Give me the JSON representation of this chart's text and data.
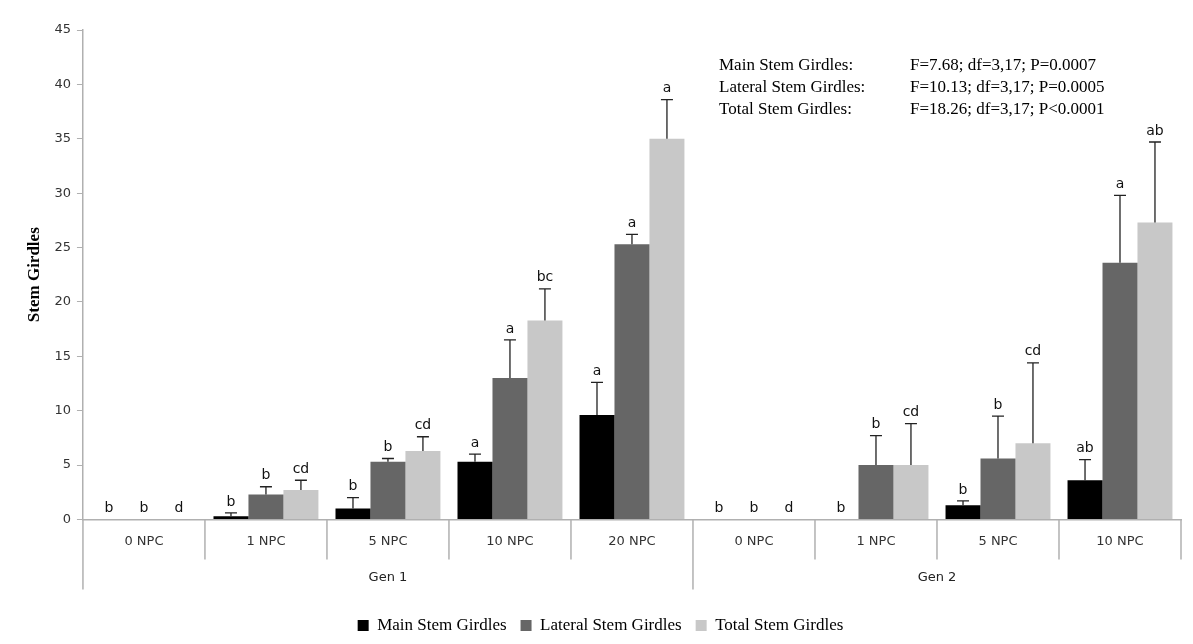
{
  "chart_data": {
    "type": "bar",
    "ylabel": "Stem Girdles",
    "categories": [
      "0 NPC",
      "1 NPC",
      "5 NPC",
      "10 NPC",
      "20 NPC",
      "0 NPC",
      "1 NPC",
      "5 NPC",
      "10 NPC"
    ],
    "series": [
      {
        "name": "Main Stem Girdles",
        "color": "#000000",
        "values": [
          0,
          0.3,
          1.0,
          5.3,
          9.6,
          0,
          0,
          1.3,
          3.6
        ],
        "errors": [
          null,
          [
            0.3,
            0.6
          ],
          [
            1.0,
            2.0
          ],
          [
            5.3,
            6.0
          ],
          [
            9.6,
            12.6
          ],
          null,
          null,
          [
            1.3,
            1.7
          ],
          [
            3.6,
            5.5
          ]
        ]
      },
      {
        "name": "Lateral Stem Girdles",
        "color": "#666666",
        "values": [
          0,
          2.3,
          5.3,
          13.0,
          25.3,
          0,
          5.0,
          5.6,
          23.6
        ],
        "errors": [
          null,
          [
            2.3,
            3.0
          ],
          [
            5.3,
            5.6
          ],
          [
            13.0,
            16.5
          ],
          [
            25.3,
            26.2
          ],
          null,
          [
            5.0,
            7.7
          ],
          [
            5.6,
            9.5
          ],
          [
            23.6,
            29.8
          ]
        ]
      },
      {
        "name": "Total Stem Girdles",
        "color": "#c8c8c8",
        "values": [
          0,
          2.7,
          6.3,
          18.3,
          35.0,
          0,
          5.0,
          7.0,
          27.3
        ],
        "errors": [
          null,
          [
            2.7,
            3.6
          ],
          [
            6.3,
            7.6
          ],
          [
            18.3,
            21.2
          ],
          [
            35.0,
            38.6
          ],
          null,
          [
            5.0,
            8.8
          ],
          [
            7.0,
            14.4
          ],
          [
            27.3,
            34.7
          ]
        ]
      }
    ],
    "ylim": [
      0,
      45
    ],
    "yticks": [
      0,
      5,
      10,
      15,
      20,
      25,
      30,
      35,
      40,
      45
    ],
    "grid": false,
    "legend": "bottom",
    "annotations": [
      "Main Stem Girdles:\tF=7.68; df=3,17; P=0.0007",
      "Lateral Stem Girdles:\tF=10.13; df=3,17; P=0.0005",
      "Total Stem Girdles:\tF=18.26; df=3,17; P<0.0001",
      "Gen 1",
      "Gen 2",
      "b",
      "b",
      "d",
      "b",
      "b",
      "cd",
      "b",
      "b",
      "cd",
      "a",
      "a",
      "bc",
      "a",
      "a",
      "a",
      "b",
      "b",
      "d",
      "b",
      "b",
      "cd",
      "b",
      "b",
      "cd",
      "ab",
      "a",
      "ab"
    ]
  }
}
